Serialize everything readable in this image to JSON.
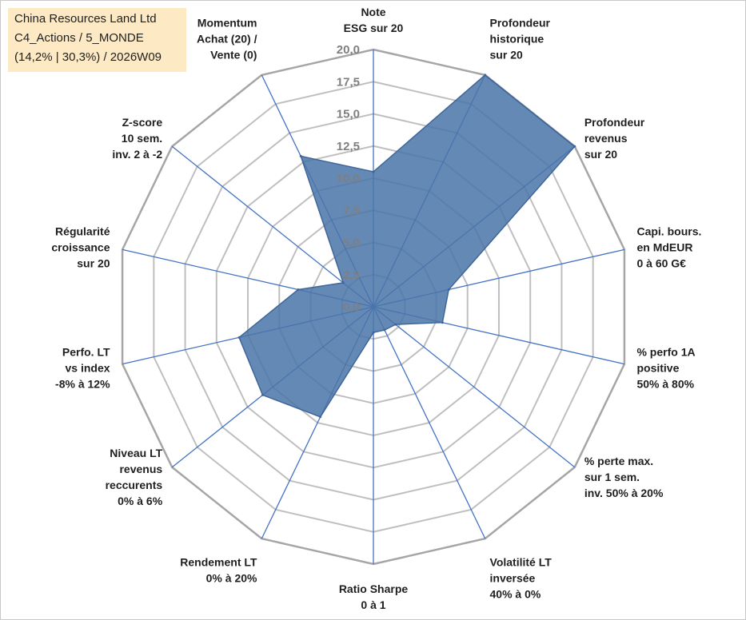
{
  "title_box": {
    "line1": "China Resources Land Ltd",
    "line2": "C4_Actions / 5_MONDE",
    "line3": "(14,2% | 30,3%) / 2026W09"
  },
  "chart_data": {
    "type": "radar",
    "title": "",
    "rmin": 0,
    "rmax": 20,
    "tick_labels": [
      "0,0",
      "2,5",
      "5,0",
      "7,5",
      "10,0",
      "12,5",
      "15,0",
      "17,5",
      "20,0"
    ],
    "ring_count": 8,
    "axes": [
      {
        "label": [
          "Note",
          "ESG sur 20"
        ],
        "value": 10.5
      },
      {
        "label": [
          "Profondeur",
          "historique",
          "sur 20"
        ],
        "value": 20.0
      },
      {
        "label": [
          "Profondeur",
          "revenus",
          "sur 20"
        ],
        "value": 20.0
      },
      {
        "label": [
          "Capi. bours.",
          "en MdEUR",
          "0 à 60 G€"
        ],
        "value": 6.0
      },
      {
        "label": [
          "% perfo 1A",
          "positive",
          "50% à 80%"
        ],
        "value": 5.5
      },
      {
        "label": [
          "% perte max.",
          "sur 1 sem.",
          "inv. 50% à 20%"
        ],
        "value": 2.2
      },
      {
        "label": [
          "Volatilité LT",
          "inversée",
          "40% à 0%"
        ],
        "value": 2.0
      },
      {
        "label": [
          "Ratio Sharpe",
          "0 à 1"
        ],
        "value": 2.0
      },
      {
        "label": [
          "Rendement LT",
          "0% à 20%"
        ],
        "value": 9.5
      },
      {
        "label": [
          "Niveau LT",
          "revenus",
          "reccurents",
          "0% à 6%"
        ],
        "value": 11.0
      },
      {
        "label": [
          "Perfo. LT",
          "vs index",
          "-8% à 12%"
        ],
        "value": 10.7
      },
      {
        "label": [
          "Régularité",
          "croissance",
          "sur 20"
        ],
        "value": 6.0
      },
      {
        "label": [
          "Z-score",
          "10 sem.",
          "inv. 2 à -2"
        ],
        "value": 3.0
      },
      {
        "label": [
          "Momentum",
          "Achat (20) /",
          "Vente (0)"
        ],
        "value": 13.0
      }
    ],
    "colors": {
      "fill": "#4a74a8",
      "outline": "#3f6699",
      "spoke": "#4472c4",
      "grid": "#bfbfbf",
      "outer": "#a6a6a6"
    }
  }
}
